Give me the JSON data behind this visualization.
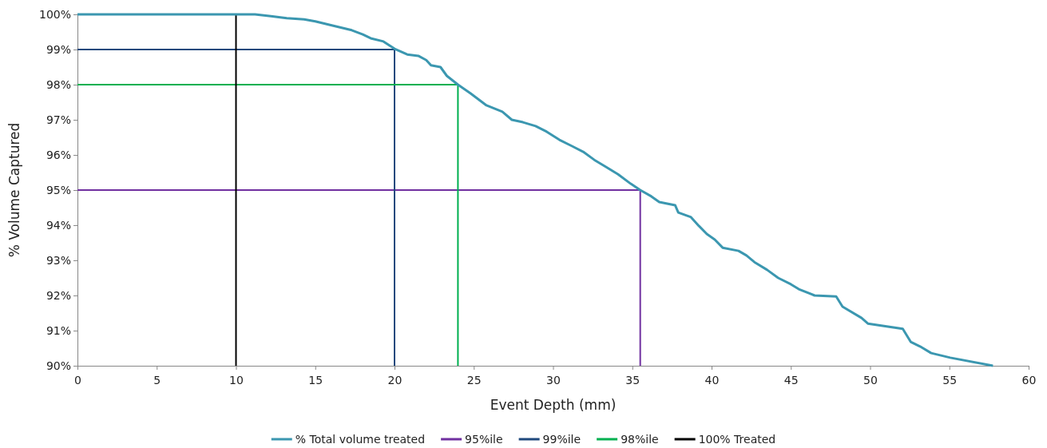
{
  "chart_data": {
    "type": "line",
    "xlabel": "Event Depth (mm)",
    "ylabel": "% Volume Captured",
    "xlim": [
      0,
      60
    ],
    "xticks": [
      0,
      5,
      10,
      15,
      20,
      25,
      30,
      35,
      40,
      45,
      50,
      55,
      60
    ],
    "ylim": [
      90,
      100
    ],
    "yticks": [
      {
        "value": 90,
        "label": "90%"
      },
      {
        "value": 91,
        "label": "91%"
      },
      {
        "value": 92,
        "label": "92%"
      },
      {
        "value": 93,
        "label": "93%"
      },
      {
        "value": 94,
        "label": "94%"
      },
      {
        "value": 95,
        "label": "95%"
      },
      {
        "value": 96,
        "label": "96%"
      },
      {
        "value": 97,
        "label": "97%"
      },
      {
        "value": 98,
        "label": "98%"
      },
      {
        "value": 99,
        "label": "99%"
      },
      {
        "value": 100,
        "label": "100%"
      }
    ],
    "grid": false,
    "legend": "bottom",
    "marker": "none",
    "line_style": "solid",
    "series": [
      {
        "name": "% Total volume treated",
        "color": "#3b97b0",
        "x": [
          0,
          11.2,
          12.2,
          13.2,
          14.3,
          15,
          16.3,
          17.3,
          18,
          18.5,
          19.3,
          20,
          20.8,
          21.5,
          22,
          22.3,
          22.9,
          23.3,
          24,
          24.8,
          25.8,
          26.8,
          27.4,
          28.1,
          28.9,
          29.6,
          30.4,
          31.2,
          31.9,
          32.6,
          33.4,
          34.1,
          34.9,
          35.5,
          36.2,
          36.7,
          37.7,
          37.9,
          38.7,
          39.2,
          39.7,
          40.2,
          40.7,
          41.7,
          42.2,
          42.7,
          43.5,
          44.2,
          45,
          45.5,
          46.5,
          47.86,
          48.26,
          49.46,
          49.86,
          52.06,
          52.56,
          53.15,
          53.85,
          55.05,
          57.75
        ],
        "values": [
          100,
          100,
          99.95,
          99.89,
          99.86,
          99.8,
          99.66,
          99.55,
          99.43,
          99.32,
          99.23,
          99.02,
          98.86,
          98.82,
          98.7,
          98.55,
          98.5,
          98.25,
          98,
          97.75,
          97.41,
          97.23,
          97,
          96.93,
          96.82,
          96.66,
          96.43,
          96.25,
          96.09,
          95.86,
          95.64,
          95.45,
          95.18,
          95,
          94.82,
          94.66,
          94.57,
          94.36,
          94.23,
          93.98,
          93.75,
          93.59,
          93.36,
          93.27,
          93.14,
          92.95,
          92.73,
          92.5,
          92.32,
          92.18,
          92,
          91.97,
          91.68,
          91.36,
          91.2,
          91.05,
          90.68,
          90.55,
          90.36,
          90.23,
          90
        ]
      },
      {
        "name": "95%ile",
        "color": "#7030a0",
        "x": [
          0,
          35.5,
          35.5
        ],
        "values": [
          95,
          95,
          90
        ]
      },
      {
        "name": "99%ile",
        "color": "#1f497d",
        "x": [
          0,
          20,
          20
        ],
        "values": [
          99,
          99,
          90
        ]
      },
      {
        "name": "98%ile",
        "color": "#00b050",
        "x": [
          0,
          24,
          24
        ],
        "values": [
          98,
          98,
          90
        ]
      },
      {
        "name": "100% Treated",
        "color": "#000000",
        "x": [
          0,
          10,
          10
        ],
        "values": [
          100,
          100,
          90
        ]
      }
    ]
  }
}
